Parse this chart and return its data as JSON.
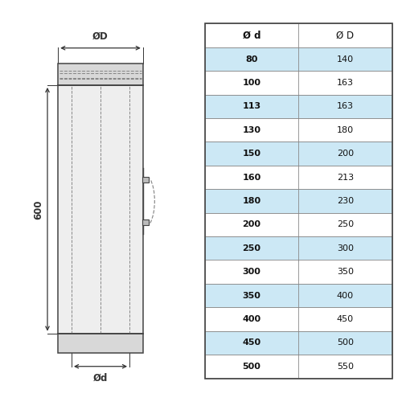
{
  "table_data": {
    "col1": [
      "Ø d",
      "80",
      "100",
      "113",
      "130",
      "150",
      "160",
      "180",
      "200",
      "250",
      "300",
      "350",
      "400",
      "450",
      "500"
    ],
    "col2": [
      "Ø D",
      "140",
      "163",
      "163",
      "180",
      "200",
      "213",
      "230",
      "250",
      "300",
      "350",
      "400",
      "450",
      "500",
      "550"
    ],
    "row_colors": [
      "#ffffff",
      "#cce8f5",
      "#ffffff",
      "#cce8f5",
      "#ffffff",
      "#cce8f5",
      "#ffffff",
      "#cce8f5",
      "#ffffff",
      "#cce8f5",
      "#ffffff",
      "#cce8f5",
      "#ffffff",
      "#cce8f5",
      "#ffffff"
    ]
  },
  "bg_color": "#ffffff",
  "dim_color": "#333333",
  "pipe_fill": "#eeeeee",
  "collar_fill": "#d8d8d8",
  "line_color": "#444444",
  "dash_color": "#888888"
}
